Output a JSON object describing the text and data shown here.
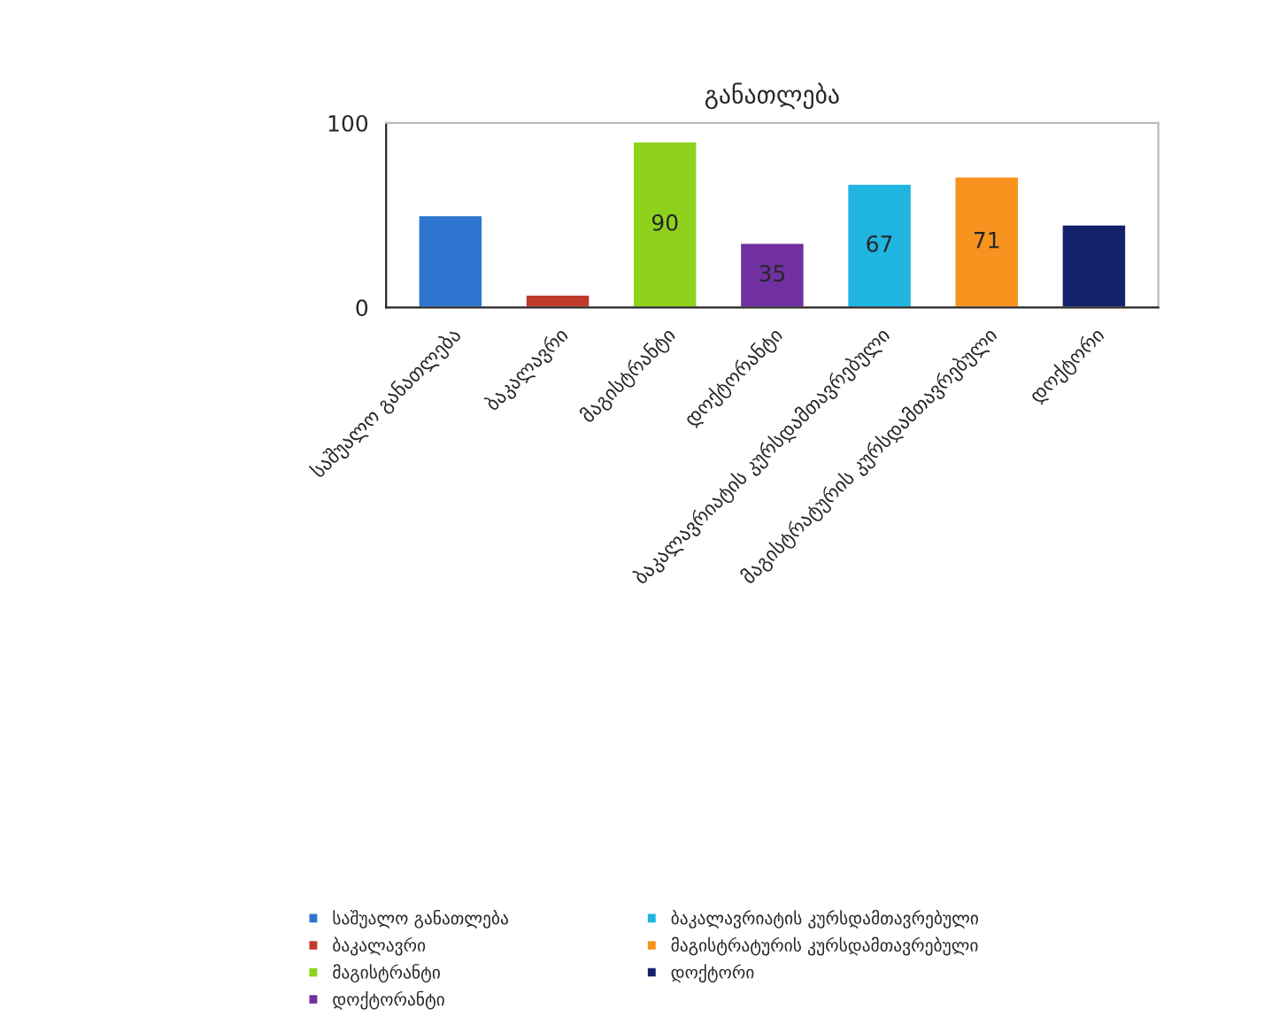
{
  "chart_data": {
    "type": "bar",
    "title": "განათლება",
    "categories": [
      "საშუალო განათლება",
      "ბაკალავრი",
      "მაგისტრანტი",
      "დოქტორანტი",
      "ბაკალავრიატის კურსდამთავრებული",
      "მაგისტრატურის კურსდამთავრებული",
      "დოქტორი"
    ],
    "series": [
      {
        "name": "საშუალო განათლება",
        "color": "#2e75d0",
        "values": [
          50,
          null,
          null,
          null,
          null,
          null,
          null
        ]
      },
      {
        "name": "ბაკალავრი",
        "color": "#c0392b",
        "values": [
          null,
          7,
          null,
          null,
          null,
          null,
          null
        ]
      },
      {
        "name": "მაგისტრანტი",
        "color": "#8fd21e",
        "values": [
          null,
          null,
          90,
          null,
          null,
          null,
          null
        ],
        "value_labels": [
          null,
          null,
          "90",
          null,
          null,
          null,
          null
        ]
      },
      {
        "name": "დოქტორანტი",
        "color": "#7030a0",
        "values": [
          null,
          null,
          null,
          35,
          null,
          null,
          null
        ],
        "value_labels": [
          null,
          null,
          null,
          "35",
          null,
          null,
          null
        ]
      },
      {
        "name": "ბაკალავრიატის კურსდამთავრებული",
        "color": "#1fb5e0",
        "values": [
          null,
          null,
          null,
          null,
          67,
          null,
          null
        ],
        "value_labels": [
          null,
          null,
          null,
          null,
          "67",
          null,
          null
        ]
      },
      {
        "name": "მაგისტრატურის კურსდამთავრებული",
        "color": "#f7931e",
        "values": [
          null,
          null,
          null,
          null,
          null,
          71,
          null
        ],
        "value_labels": [
          null,
          null,
          null,
          null,
          null,
          "71",
          null
        ]
      },
      {
        "name": "დოქტორი",
        "color": "#14216b",
        "values": [
          null,
          null,
          null,
          null,
          null,
          null,
          45
        ]
      }
    ],
    "ylim": [
      0,
      100
    ],
    "yticks": [
      0,
      100
    ],
    "legend": "bottom"
  }
}
